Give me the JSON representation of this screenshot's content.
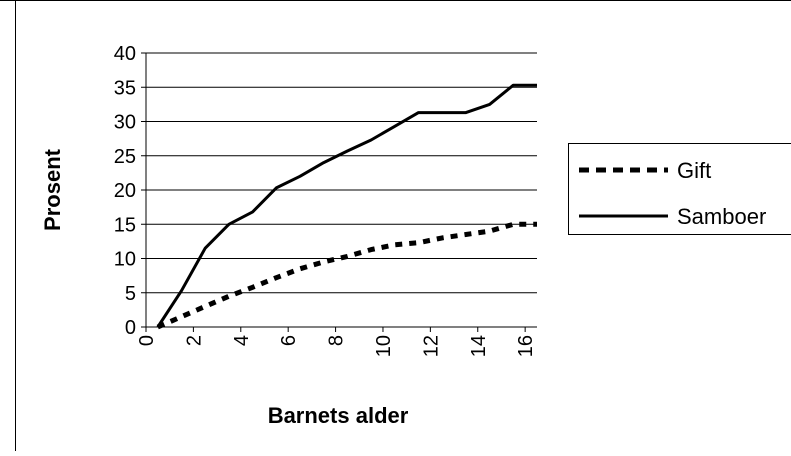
{
  "chart_data": {
    "type": "line",
    "title": "",
    "xlabel": "Barnets alder",
    "ylabel": "Prosent",
    "x_ticks": [
      "0",
      "2",
      "4",
      "6",
      "8",
      "10",
      "12",
      "14",
      "16"
    ],
    "y_ticks": [
      "0",
      "5",
      "10",
      "15",
      "20",
      "25",
      "30",
      "35",
      "40"
    ],
    "xlim": [
      0,
      16.5
    ],
    "ylim": [
      0,
      40
    ],
    "grid": "horizontal",
    "legend_position": "right",
    "series": [
      {
        "name": "Gift",
        "style": "dashed",
        "color": "#000000",
        "x": [
          0.5,
          1.5,
          2.5,
          3.5,
          4.5,
          5.5,
          6.5,
          7.5,
          8.5,
          9.5,
          10.5,
          11.5,
          12.5,
          13.5,
          14.5,
          15.5,
          16.5
        ],
        "values": [
          0,
          1.5,
          3,
          4.5,
          5.8,
          7.2,
          8.5,
          9.5,
          10.3,
          11.3,
          12,
          12.3,
          13,
          13.5,
          14,
          15,
          15
        ]
      },
      {
        "name": "Samboer",
        "style": "solid",
        "color": "#000000",
        "x": [
          0.5,
          1.5,
          2.5,
          3.5,
          4.5,
          5.5,
          6.5,
          7.5,
          8.5,
          9.5,
          10.5,
          11.5,
          12.5,
          13.5,
          14.5,
          15.5,
          16.5
        ],
        "values": [
          0,
          5.3,
          11.5,
          15,
          16.8,
          20.3,
          22,
          24,
          25.7,
          27.3,
          29.3,
          31.3,
          31.3,
          31.3,
          32.5,
          35.3,
          35.3
        ]
      }
    ]
  }
}
